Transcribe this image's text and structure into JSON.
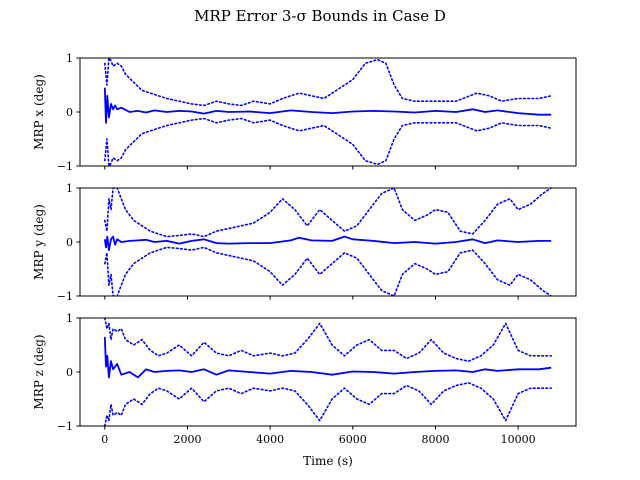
{
  "figure": {
    "title": "MRP Error 3-σ Bounds in Case D",
    "xlabel": "Time (s)"
  },
  "chart_data": [
    {
      "type": "line",
      "ylabel": "MRP x (deg)",
      "xlim": [
        -600,
        11400
      ],
      "ylim": [
        -1,
        1
      ],
      "yticks": [
        -1,
        0,
        1
      ],
      "xticks": [
        0,
        2000,
        4000,
        6000,
        8000,
        10000
      ],
      "grid": false,
      "series": [
        {
          "style": "solid",
          "color": "#0000ff",
          "x": [
            0,
            30,
            60,
            100,
            150,
            200,
            250,
            300,
            400,
            600,
            800,
            1000,
            1200,
            1500,
            1800,
            2100,
            2400,
            2700,
            3000,
            3500,
            4000,
            4500,
            5000,
            5500,
            6000,
            6500,
            7000,
            7500,
            8000,
            8500,
            8900,
            9200,
            9500,
            10000,
            10500,
            10800
          ],
          "y": [
            0.45,
            -0.2,
            0.3,
            -0.1,
            0.15,
            0.05,
            0.12,
            0.05,
            0.08,
            0.0,
            0.02,
            -0.01,
            0.03,
            0.0,
            0.02,
            0.01,
            -0.03,
            0.02,
            0.0,
            0.01,
            -0.02,
            0.03,
            0.0,
            -0.02,
            0.01,
            0.02,
            0.01,
            -0.01,
            0.02,
            0.0,
            0.05,
            0.0,
            0.03,
            -0.02,
            -0.05,
            -0.05
          ]
        },
        {
          "style": "dotted",
          "color": "#0000ff",
          "x": [
            0,
            50,
            100,
            150,
            200,
            300,
            400,
            500,
            700,
            900,
            1100,
            1300,
            1500,
            1800,
            2100,
            2400,
            2700,
            3000,
            3300,
            3600,
            4000,
            4300,
            4700,
            5000,
            5300,
            5600,
            6000,
            6300,
            6600,
            6800,
            7000,
            7200,
            7500,
            8000,
            8500,
            9000,
            9300,
            9600,
            10000,
            10500,
            10800
          ],
          "y": [
            0.9,
            0.5,
            1.0,
            0.95,
            0.85,
            0.9,
            0.85,
            0.7,
            0.55,
            0.4,
            0.35,
            0.3,
            0.25,
            0.2,
            0.15,
            0.12,
            0.2,
            0.15,
            0.12,
            0.2,
            0.15,
            0.25,
            0.35,
            0.3,
            0.25,
            0.4,
            0.6,
            0.9,
            0.97,
            0.9,
            0.5,
            0.25,
            0.2,
            0.2,
            0.2,
            0.35,
            0.3,
            0.2,
            0.25,
            0.25,
            0.3
          ]
        },
        {
          "style": "dotted",
          "color": "#0000ff",
          "x": [
            0,
            50,
            100,
            150,
            200,
            300,
            400,
            500,
            700,
            900,
            1100,
            1300,
            1500,
            1800,
            2100,
            2400,
            2700,
            3000,
            3300,
            3600,
            4000,
            4300,
            4700,
            5000,
            5300,
            5600,
            6000,
            6300,
            6600,
            6800,
            7000,
            7200,
            7500,
            8000,
            8500,
            9000,
            9300,
            9600,
            10000,
            10500,
            10800
          ],
          "y": [
            -0.9,
            -0.5,
            -1.0,
            -0.95,
            -0.85,
            -0.9,
            -0.85,
            -0.7,
            -0.55,
            -0.4,
            -0.35,
            -0.3,
            -0.25,
            -0.2,
            -0.15,
            -0.12,
            -0.2,
            -0.15,
            -0.12,
            -0.2,
            -0.15,
            -0.25,
            -0.35,
            -0.3,
            -0.25,
            -0.4,
            -0.6,
            -0.9,
            -0.97,
            -0.9,
            -0.5,
            -0.25,
            -0.2,
            -0.2,
            -0.2,
            -0.35,
            -0.3,
            -0.2,
            -0.25,
            -0.25,
            -0.3
          ]
        }
      ]
    },
    {
      "type": "line",
      "ylabel": "MRP y (deg)",
      "xlim": [
        -600,
        11400
      ],
      "ylim": [
        -1,
        1
      ],
      "yticks": [
        -1,
        0,
        1
      ],
      "xticks": [
        0,
        2000,
        4000,
        6000,
        8000,
        10000
      ],
      "grid": false,
      "series": [
        {
          "style": "solid",
          "color": "#0000ff",
          "x": [
            0,
            30,
            60,
            100,
            150,
            200,
            250,
            300,
            400,
            600,
            800,
            1000,
            1200,
            1500,
            1800,
            2100,
            2400,
            2700,
            3000,
            3500,
            4000,
            4500,
            4700,
            5000,
            5500,
            5800,
            6000,
            6500,
            7000,
            7500,
            8000,
            8500,
            8900,
            9200,
            9500,
            10000,
            10500,
            10800
          ],
          "y": [
            0.05,
            -0.1,
            0.1,
            -0.15,
            0.05,
            0.1,
            -0.05,
            0.05,
            0.0,
            0.02,
            0.03,
            0.04,
            0.0,
            0.02,
            -0.03,
            0.02,
            0.05,
            -0.02,
            -0.03,
            -0.02,
            -0.02,
            0.03,
            0.08,
            0.03,
            0.02,
            0.1,
            0.05,
            0.02,
            -0.02,
            0.0,
            -0.03,
            0.0,
            0.05,
            -0.02,
            0.03,
            0.0,
            0.02,
            0.02
          ]
        },
        {
          "style": "dotted",
          "color": "#0000ff",
          "x": [
            0,
            50,
            100,
            150,
            200,
            300,
            400,
            500,
            700,
            900,
            1100,
            1300,
            1500,
            1800,
            2100,
            2400,
            2700,
            3000,
            3300,
            3600,
            4000,
            4300,
            4600,
            4900,
            5200,
            5500,
            5800,
            6100,
            6400,
            6700,
            7000,
            7200,
            7500,
            7800,
            8000,
            8300,
            8600,
            8900,
            9200,
            9500,
            9800,
            10000,
            10300,
            10600,
            10800
          ],
          "y": [
            0.4,
            0.2,
            0.8,
            0.6,
            1.0,
            1.0,
            0.8,
            0.6,
            0.4,
            0.3,
            0.2,
            0.15,
            0.1,
            0.12,
            0.15,
            0.1,
            0.2,
            0.25,
            0.3,
            0.35,
            0.55,
            0.8,
            0.6,
            0.3,
            0.6,
            0.4,
            0.2,
            0.3,
            0.6,
            0.9,
            1.0,
            0.6,
            0.4,
            0.5,
            0.6,
            0.55,
            0.2,
            0.15,
            0.4,
            0.7,
            0.8,
            0.6,
            0.7,
            0.9,
            1.0
          ]
        },
        {
          "style": "dotted",
          "color": "#0000ff",
          "x": [
            0,
            50,
            100,
            150,
            200,
            300,
            400,
            500,
            700,
            900,
            1100,
            1300,
            1500,
            1800,
            2100,
            2400,
            2700,
            3000,
            3300,
            3600,
            4000,
            4300,
            4600,
            4900,
            5200,
            5500,
            5800,
            6100,
            6400,
            6700,
            7000,
            7200,
            7500,
            7800,
            8000,
            8300,
            8600,
            8900,
            9200,
            9500,
            9800,
            10000,
            10300,
            10600,
            10800
          ],
          "y": [
            -0.4,
            -0.2,
            -0.8,
            -0.6,
            -1.0,
            -1.0,
            -0.8,
            -0.6,
            -0.4,
            -0.3,
            -0.2,
            -0.15,
            -0.1,
            -0.12,
            -0.15,
            -0.1,
            -0.2,
            -0.25,
            -0.3,
            -0.35,
            -0.55,
            -0.8,
            -0.6,
            -0.3,
            -0.6,
            -0.4,
            -0.2,
            -0.3,
            -0.6,
            -0.9,
            -1.0,
            -0.6,
            -0.4,
            -0.5,
            -0.6,
            -0.55,
            -0.2,
            -0.15,
            -0.4,
            -0.7,
            -0.8,
            -0.6,
            -0.7,
            -0.9,
            -1.0
          ]
        }
      ]
    },
    {
      "type": "line",
      "ylabel": "MRP z (deg)",
      "xlim": [
        -600,
        11400
      ],
      "ylim": [
        -1,
        1
      ],
      "yticks": [
        -1,
        0,
        1
      ],
      "xticks": [
        0,
        2000,
        4000,
        6000,
        8000,
        10000
      ],
      "grid": false,
      "series": [
        {
          "style": "solid",
          "color": "#0000ff",
          "x": [
            0,
            30,
            60,
            100,
            150,
            200,
            250,
            300,
            400,
            600,
            800,
            1000,
            1200,
            1500,
            1800,
            2100,
            2400,
            2700,
            3000,
            3500,
            4000,
            4500,
            5000,
            5500,
            6000,
            6500,
            7000,
            7500,
            8000,
            8500,
            8900,
            9200,
            9500,
            10000,
            10500,
            10800
          ],
          "y": [
            0.65,
            0.1,
            0.3,
            -0.1,
            0.2,
            0.05,
            0.1,
            0.15,
            -0.05,
            0.0,
            -0.1,
            0.05,
            0.0,
            0.02,
            0.03,
            0.0,
            0.05,
            -0.05,
            0.03,
            0.0,
            -0.03,
            0.02,
            0.0,
            -0.05,
            0.01,
            0.0,
            -0.03,
            0.0,
            0.02,
            0.03,
            0.0,
            0.05,
            0.02,
            0.05,
            0.05,
            0.08
          ]
        },
        {
          "style": "dotted",
          "color": "#0000ff",
          "x": [
            0,
            50,
            100,
            150,
            200,
            300,
            400,
            500,
            700,
            900,
            1100,
            1300,
            1500,
            1800,
            2100,
            2400,
            2700,
            3000,
            3300,
            3600,
            4000,
            4300,
            4600,
            4900,
            5200,
            5500,
            5800,
            6100,
            6400,
            6700,
            7000,
            7300,
            7600,
            7900,
            8200,
            8500,
            8800,
            9100,
            9400,
            9700,
            10000,
            10300,
            10600,
            10800
          ],
          "y": [
            1.0,
            0.8,
            0.9,
            0.6,
            0.8,
            0.75,
            0.8,
            0.6,
            0.5,
            0.6,
            0.4,
            0.3,
            0.35,
            0.5,
            0.3,
            0.55,
            0.35,
            0.3,
            0.4,
            0.3,
            0.35,
            0.3,
            0.35,
            0.6,
            0.9,
            0.5,
            0.3,
            0.5,
            0.6,
            0.4,
            0.4,
            0.25,
            0.35,
            0.6,
            0.35,
            0.25,
            0.2,
            0.3,
            0.5,
            0.9,
            0.4,
            0.3,
            0.3,
            0.3
          ]
        },
        {
          "style": "dotted",
          "color": "#0000ff",
          "x": [
            0,
            50,
            100,
            150,
            200,
            300,
            400,
            500,
            700,
            900,
            1100,
            1300,
            1500,
            1800,
            2100,
            2400,
            2700,
            3000,
            3300,
            3600,
            4000,
            4300,
            4600,
            4900,
            5200,
            5500,
            5800,
            6100,
            6400,
            6700,
            7000,
            7300,
            7600,
            7900,
            8200,
            8500,
            8800,
            9100,
            9400,
            9700,
            10000,
            10300,
            10600,
            10800
          ],
          "y": [
            -1.0,
            -0.8,
            -0.9,
            -0.6,
            -0.8,
            -0.75,
            -0.8,
            -0.6,
            -0.5,
            -0.6,
            -0.4,
            -0.3,
            -0.35,
            -0.5,
            -0.3,
            -0.55,
            -0.35,
            -0.3,
            -0.4,
            -0.3,
            -0.35,
            -0.3,
            -0.35,
            -0.6,
            -0.9,
            -0.5,
            -0.3,
            -0.5,
            -0.6,
            -0.4,
            -0.4,
            -0.25,
            -0.35,
            -0.6,
            -0.35,
            -0.25,
            -0.2,
            -0.3,
            -0.5,
            -0.9,
            -0.4,
            -0.3,
            -0.3,
            -0.3
          ]
        }
      ]
    }
  ]
}
